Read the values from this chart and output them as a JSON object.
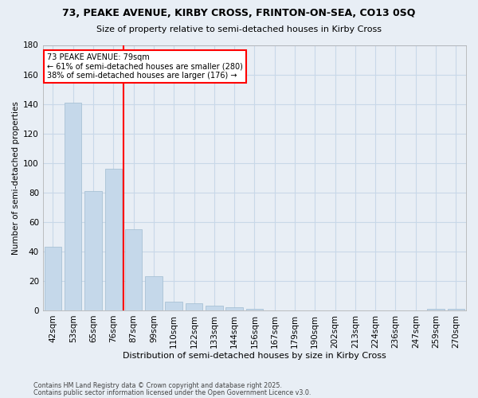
{
  "title1": "73, PEAKE AVENUE, KIRBY CROSS, FRINTON-ON-SEA, CO13 0SQ",
  "title2": "Size of property relative to semi-detached houses in Kirby Cross",
  "xlabel": "Distribution of semi-detached houses by size in Kirby Cross",
  "ylabel": "Number of semi-detached properties",
  "categories": [
    "42sqm",
    "53sqm",
    "65sqm",
    "76sqm",
    "87sqm",
    "99sqm",
    "110sqm",
    "122sqm",
    "133sqm",
    "144sqm",
    "156sqm",
    "167sqm",
    "179sqm",
    "190sqm",
    "202sqm",
    "213sqm",
    "224sqm",
    "236sqm",
    "247sqm",
    "259sqm",
    "270sqm"
  ],
  "values": [
    43,
    141,
    81,
    96,
    55,
    23,
    6,
    5,
    3,
    2,
    1,
    0,
    0,
    0,
    0,
    0,
    0,
    0,
    0,
    1,
    1
  ],
  "bar_color": "#c5d8ea",
  "bar_edge_color": "#a0bcd0",
  "grid_color": "#c8d8e8",
  "annotation_line1": "73 PEAKE AVENUE: 79sqm",
  "annotation_line2": "← 61% of semi-detached houses are smaller (280)",
  "annotation_line3": "38% of semi-detached houses are larger (176) →",
  "marker_bar_index": 3,
  "ylim_max": 180,
  "yticks": [
    0,
    20,
    40,
    60,
    80,
    100,
    120,
    140,
    160,
    180
  ],
  "footnote1": "Contains HM Land Registry data © Crown copyright and database right 2025.",
  "footnote2": "Contains public sector information licensed under the Open Government Licence v3.0.",
  "bg_color": "#e8eef5"
}
